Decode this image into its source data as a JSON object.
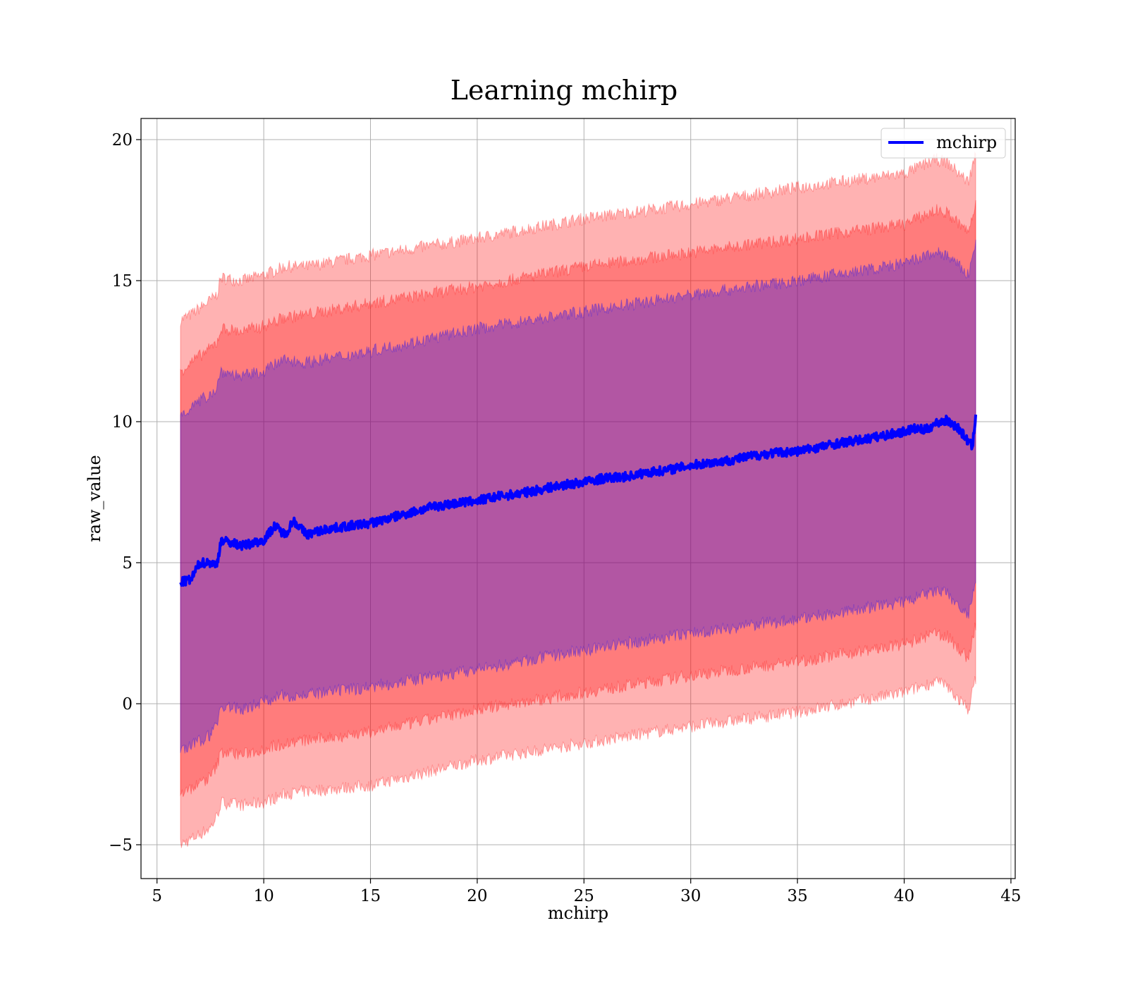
{
  "chart_data": {
    "type": "line",
    "title": "Learning mchirp",
    "xlabel": "mchirp",
    "ylabel": "raw_value",
    "xlim": [
      4.25,
      45.2
    ],
    "ylim": [
      -6.2,
      20.75
    ],
    "xticks": [
      5,
      10,
      15,
      20,
      25,
      30,
      35,
      40,
      45
    ],
    "yticks": [
      -5,
      0,
      5,
      10,
      15,
      20
    ],
    "xtick_labels": [
      "5",
      "10",
      "15",
      "20",
      "25",
      "30",
      "35",
      "40",
      "45"
    ],
    "ytick_labels": [
      "−5",
      "0",
      "5",
      "10",
      "15",
      "20"
    ],
    "grid": true,
    "legend": {
      "position": "top-right",
      "entries": [
        "mchirp"
      ]
    },
    "series": [
      {
        "name": "mchirp",
        "color": "#0000ff",
        "x": [
          6.1,
          6.6,
          7.0,
          7.5,
          7.8,
          8.0,
          8.5,
          9.0,
          9.5,
          10.0,
          10.5,
          11.0,
          11.4,
          12.0,
          12.5,
          13.0,
          14.0,
          15.0,
          16.0,
          17.0,
          18.0,
          19.0,
          20.0,
          21.0,
          22.0,
          23.0,
          24.0,
          25.0,
          26.0,
          27.0,
          28.0,
          29.0,
          30.0,
          31.0,
          32.0,
          33.0,
          34.0,
          35.0,
          36.0,
          37.0,
          38.0,
          39.0,
          40.0,
          40.5,
          41.0,
          41.5,
          42.0,
          42.5,
          43.0,
          43.2,
          43.35
        ],
        "y": [
          4.3,
          4.4,
          5.0,
          5.0,
          4.9,
          5.8,
          5.7,
          5.6,
          5.7,
          5.8,
          6.3,
          6.0,
          6.5,
          6.0,
          6.1,
          6.2,
          6.3,
          6.4,
          6.6,
          6.8,
          7.0,
          7.1,
          7.2,
          7.35,
          7.45,
          7.6,
          7.75,
          7.85,
          8.0,
          8.05,
          8.2,
          8.3,
          8.45,
          8.55,
          8.65,
          8.8,
          8.9,
          8.95,
          9.1,
          9.25,
          9.35,
          9.5,
          9.65,
          9.75,
          9.7,
          9.95,
          10.05,
          9.8,
          9.3,
          9.1,
          10.25
        ]
      }
    ],
    "bands": [
      {
        "color": "#ff0000",
        "opacity": 0.3,
        "x": [
          6.1,
          6.6,
          7.5,
          7.8,
          8.0,
          9.0,
          10.0,
          11.0,
          12.0,
          15.0,
          20.0,
          25.0,
          30.0,
          35.0,
          40.0,
          41.5,
          42.0,
          43.0,
          43.35
        ],
        "upper": [
          13.6,
          13.8,
          14.3,
          14.5,
          15.1,
          15.0,
          15.2,
          15.5,
          15.5,
          15.9,
          16.5,
          17.2,
          17.7,
          18.3,
          18.8,
          19.3,
          19.2,
          18.5,
          19.5
        ],
        "lower": [
          -5.0,
          -4.8,
          -4.4,
          -4.0,
          -3.5,
          -3.6,
          -3.5,
          -3.2,
          -3.1,
          -2.9,
          -2.0,
          -1.4,
          -0.8,
          -0.3,
          0.4,
          0.8,
          0.6,
          -0.2,
          0.9
        ]
      },
      {
        "color": "#ff0000",
        "opacity": 0.3,
        "x": [
          6.1,
          6.6,
          7.5,
          7.8,
          8.0,
          9.0,
          10.0,
          11.0,
          12.0,
          15.0,
          20.0,
          25.0,
          30.0,
          35.0,
          40.0,
          41.5,
          42.0,
          43.0,
          43.35
        ],
        "upper": [
          11.8,
          12.1,
          12.6,
          12.8,
          13.3,
          13.2,
          13.4,
          13.7,
          13.8,
          14.2,
          14.8,
          15.5,
          16.0,
          16.5,
          17.0,
          17.5,
          17.4,
          16.7,
          17.7
        ],
        "lower": [
          -3.2,
          -3.0,
          -2.6,
          -2.2,
          -1.7,
          -1.8,
          -1.6,
          -1.4,
          -1.3,
          -1.0,
          -0.2,
          0.4,
          1.0,
          1.5,
          2.1,
          2.5,
          2.4,
          1.6,
          2.8
        ]
      },
      {
        "color": "#0000ff",
        "opacity": 0.3,
        "x": [
          6.1,
          6.6,
          7.5,
          7.8,
          8.0,
          9.0,
          10.0,
          11.0,
          12.0,
          15.0,
          20.0,
          25.0,
          30.0,
          35.0,
          40.0,
          41.5,
          42.0,
          43.0,
          43.35
        ],
        "upper": [
          10.3,
          10.5,
          11.0,
          11.2,
          11.8,
          11.6,
          11.8,
          12.2,
          12.1,
          12.5,
          13.3,
          13.9,
          14.5,
          15.0,
          15.6,
          16.0,
          15.9,
          15.2,
          16.3
        ],
        "lower": [
          -1.7,
          -1.5,
          -1.1,
          -0.7,
          -0.1,
          -0.2,
          0.1,
          0.3,
          0.3,
          0.6,
          1.2,
          1.9,
          2.5,
          3.0,
          3.6,
          4.0,
          3.9,
          3.1,
          4.3
        ]
      }
    ]
  }
}
